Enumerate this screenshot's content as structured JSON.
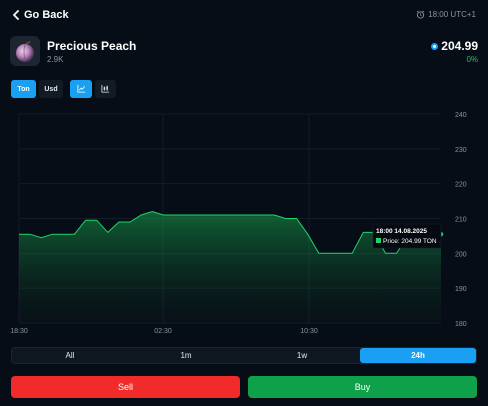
{
  "nav": {
    "back_label": "Go Back",
    "time_label": "18:00 UTC+1"
  },
  "item": {
    "name": "Precious Peach",
    "count": "2.9K",
    "price": "204.99",
    "change": "0%"
  },
  "currency_toggle": [
    "Ton",
    "Usd"
  ],
  "icons": {
    "back": "chevron-left-icon",
    "clock": "alarm-clock-icon",
    "currency": "ton-coin-icon",
    "line_chart": "line-chart-icon",
    "candle_chart": "candlestick-chart-icon"
  },
  "periods": [
    "All",
    "1m",
    "1w",
    "24h"
  ],
  "active_period": "24h",
  "actions": {
    "sell": "Sell",
    "buy": "Buy"
  },
  "colors": {
    "accent": "#1aa0f2",
    "positive": "#18c06a",
    "sell": "#f12a2a",
    "buy": "#0fa14a",
    "background": "#070d16"
  },
  "chart_data": {
    "type": "area",
    "x_ticks": [
      "18:30",
      "02:30",
      "10:30"
    ],
    "y_ticks": [
      180,
      190,
      200,
      210,
      220,
      230,
      240
    ],
    "ylim": [
      180,
      240
    ],
    "values": [
      205.5,
      205.5,
      204.5,
      205.5,
      205.5,
      205.5,
      209.5,
      209.5,
      206,
      209,
      209,
      211,
      212,
      211,
      211,
      211,
      211,
      211,
      211,
      211,
      211,
      211,
      211,
      211,
      210,
      210,
      205.5,
      200,
      200,
      200,
      200,
      206,
      206,
      200,
      200,
      205,
      205,
      205,
      205.5
    ],
    "tooltip": {
      "time": "18:00 14.08.2025",
      "label": "Price: 204.99 TON"
    }
  }
}
